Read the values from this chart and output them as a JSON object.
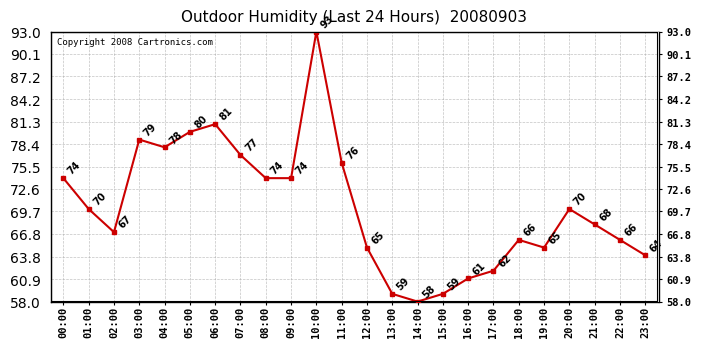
{
  "title": "Outdoor Humidity (Last 24 Hours)  20080903",
  "copyright": "Copyright 2008 Cartronics.com",
  "hours": [
    "00:00",
    "01:00",
    "02:00",
    "03:00",
    "04:00",
    "05:00",
    "06:00",
    "07:00",
    "08:00",
    "09:00",
    "10:00",
    "11:00",
    "12:00",
    "13:00",
    "14:00",
    "15:00",
    "16:00",
    "17:00",
    "18:00",
    "19:00",
    "20:00",
    "21:00",
    "22:00",
    "23:00"
  ],
  "values": [
    74,
    70,
    67,
    79,
    78,
    80,
    81,
    77,
    74,
    74,
    93,
    76,
    65,
    59,
    58,
    59,
    61,
    62,
    66,
    65,
    70,
    68,
    66,
    64
  ],
  "yticks": [
    58.0,
    60.9,
    63.8,
    66.8,
    69.7,
    72.6,
    75.5,
    78.4,
    81.3,
    84.2,
    87.2,
    90.1,
    93.0
  ],
  "ymin": 58.0,
  "ymax": 93.0,
  "line_color": "#cc0000",
  "marker_color": "#cc0000",
  "bg_color": "#ffffff",
  "plot_bg_color": "#ffffff",
  "grid_color": "#aaaaaa",
  "title_fontsize": 11,
  "tick_fontsize": 7.5,
  "annotation_fontsize": 7,
  "copyright_fontsize": 6.5
}
